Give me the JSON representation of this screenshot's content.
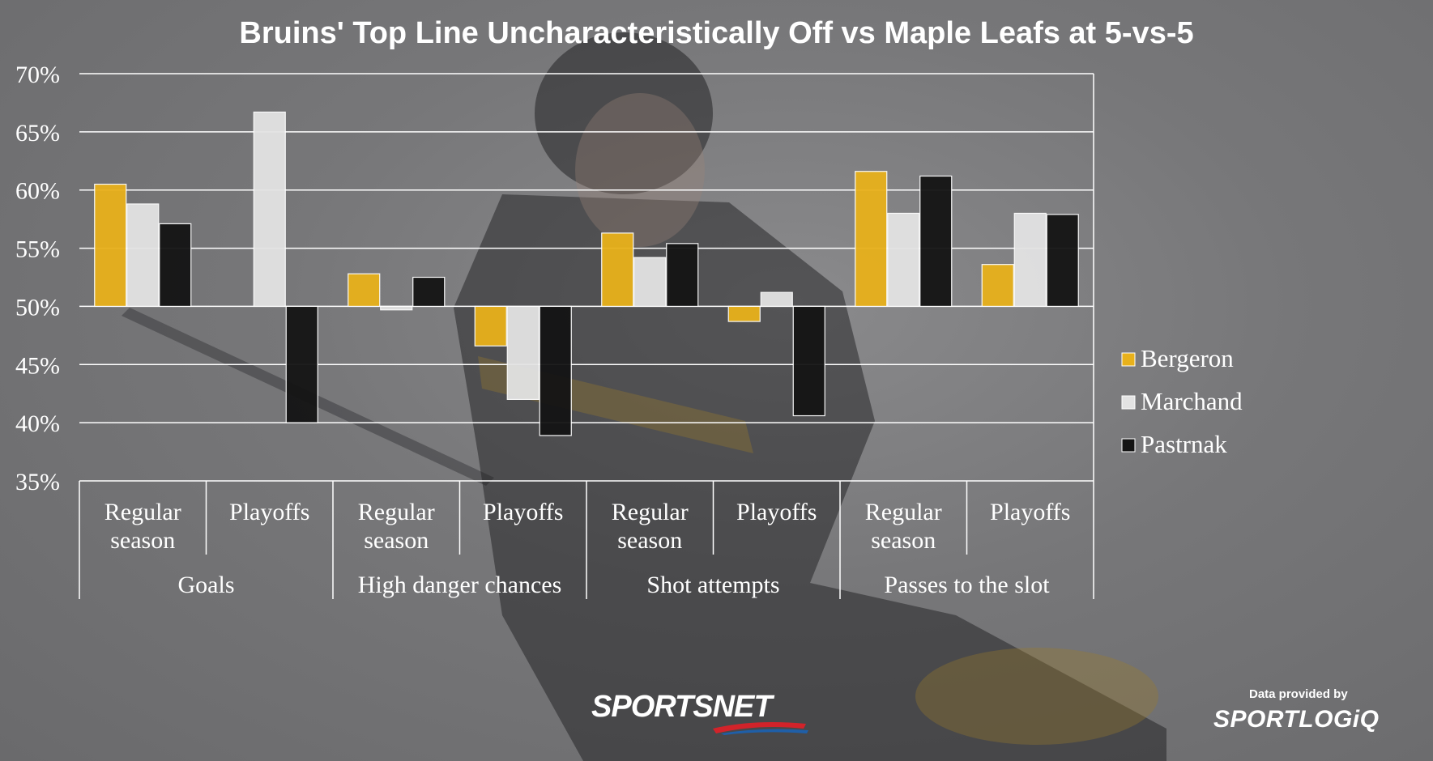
{
  "chart_data": {
    "type": "bar",
    "title": "Bruins' Top Line Uncharacteristically Off vs Maple Leafs at 5-vs-5",
    "xlabel": "",
    "ylabel": "",
    "ylim": [
      35,
      70
    ],
    "yticks": [
      "70%",
      "65%",
      "60%",
      "55%",
      "50%",
      "45%",
      "40%",
      "35%"
    ],
    "baseline": 50,
    "grid": true,
    "legend_position": "right",
    "groups": [
      {
        "label": "Goals",
        "categories": [
          "Regular season",
          "Playoffs"
        ]
      },
      {
        "label": "High danger chances",
        "categories": [
          "Regular season",
          "Playoffs"
        ]
      },
      {
        "label": "Shot attempts",
        "categories": [
          "Regular season",
          "Playoffs"
        ]
      },
      {
        "label": "Passes to the slot",
        "categories": [
          "Regular season",
          "Playoffs"
        ]
      }
    ],
    "categories": [
      "Goals – Regular season",
      "Goals – Playoffs",
      "High danger chances – Regular season",
      "High danger chances – Playoffs",
      "Shot attempts – Regular season",
      "Shot attempts – Playoffs",
      "Passes to the slot – Regular season",
      "Passes to the slot – Playoffs"
    ],
    "series": [
      {
        "name": "Bergeron",
        "color": "#E8B11B",
        "values": [
          60.5,
          null,
          52.8,
          46.6,
          56.3,
          48.7,
          61.6,
          53.6
        ]
      },
      {
        "name": "Marchand",
        "color": "#E3E3E3",
        "values": [
          58.8,
          66.7,
          49.7,
          42.0,
          54.2,
          51.2,
          58.0,
          58.0
        ]
      },
      {
        "name": "Pastrnak",
        "color": "#141414",
        "values": [
          57.1,
          40.0,
          52.5,
          38.9,
          55.4,
          40.6,
          61.2,
          57.9
        ]
      }
    ]
  },
  "credits": {
    "brand": "SPORTSNET",
    "provided_by": "Data provided by",
    "provider": "SPORTLOGiQ"
  },
  "colors": {
    "background": "#787879",
    "bergeron": "#E8B11B",
    "marchand": "#E3E3E3",
    "pastrnak": "#141414"
  }
}
